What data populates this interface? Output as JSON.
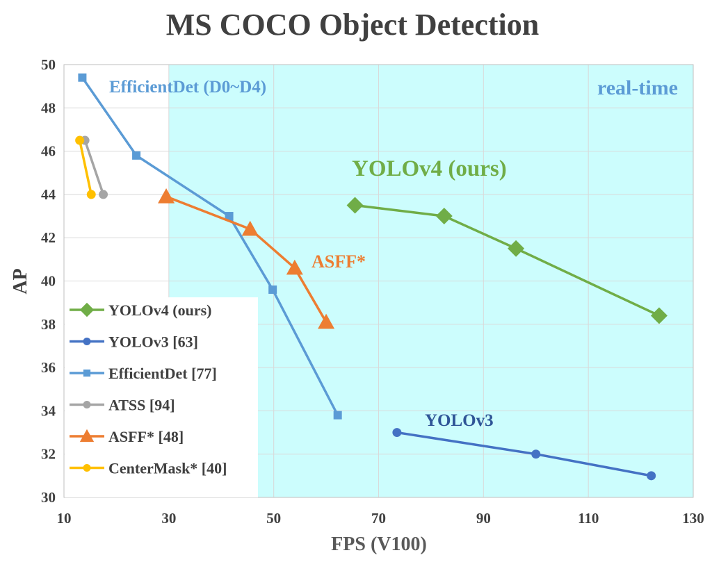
{
  "chart_data": {
    "type": "line",
    "title": "MS COCO Object Detection",
    "xlabel": "FPS (V100)",
    "ylabel": "AP",
    "xlim": [
      10,
      130
    ],
    "ylim": [
      30,
      50
    ],
    "xticks": [
      10,
      30,
      50,
      70,
      90,
      110,
      130
    ],
    "yticks": [
      30,
      32,
      34,
      36,
      38,
      40,
      42,
      44,
      46,
      48,
      50
    ],
    "grid": true,
    "legend_position": "bottom-left",
    "region": {
      "label": "real-time",
      "x_from": 30,
      "color": "#ccfdfd"
    },
    "series": [
      {
        "name": "YOLOv4 (ours)",
        "color": "#70ad47",
        "marker": "diamond",
        "x": [
          65.5,
          82.5,
          96.2,
          123.5
        ],
        "y": [
          43.5,
          43.0,
          41.5,
          38.4
        ]
      },
      {
        "name": "YOLOv3 [63]",
        "color": "#4472c4",
        "marker": "circle",
        "x": [
          73.5,
          100.0,
          122.0
        ],
        "y": [
          33.0,
          32.0,
          31.0
        ]
      },
      {
        "name": "EfficientDet [77]",
        "color": "#5b9bd5",
        "marker": "square",
        "x": [
          13.5,
          23.8,
          41.5,
          49.8,
          62.2
        ],
        "y": [
          49.4,
          45.8,
          43.0,
          39.6,
          33.8
        ]
      },
      {
        "name": "ATSS [94]",
        "color": "#a5a5a5",
        "marker": "circle",
        "x": [
          14.0,
          17.5
        ],
        "y": [
          46.5,
          44.0
        ]
      },
      {
        "name": "ASFF* [48]",
        "color": "#ed7d31",
        "marker": "triangle",
        "x": [
          29.5,
          45.5,
          54.0,
          60.0
        ],
        "y": [
          43.9,
          42.4,
          40.6,
          38.1
        ]
      },
      {
        "name": "CenterMask* [40]",
        "color": "#ffc000",
        "marker": "circle",
        "x": [
          13.0,
          15.2
        ],
        "y": [
          46.5,
          44.0
        ]
      }
    ],
    "annotations": [
      {
        "text": "EfficientDet (D0~D4)",
        "color": "#5b9bd5"
      },
      {
        "text": "real-time",
        "color": "#5b9bd5"
      },
      {
        "text": "YOLOv4 (ours)",
        "color": "#70ad47"
      },
      {
        "text": "ASFF*",
        "color": "#ed7d31"
      },
      {
        "text": "YOLOv3",
        "color": "#2f5597"
      }
    ]
  }
}
